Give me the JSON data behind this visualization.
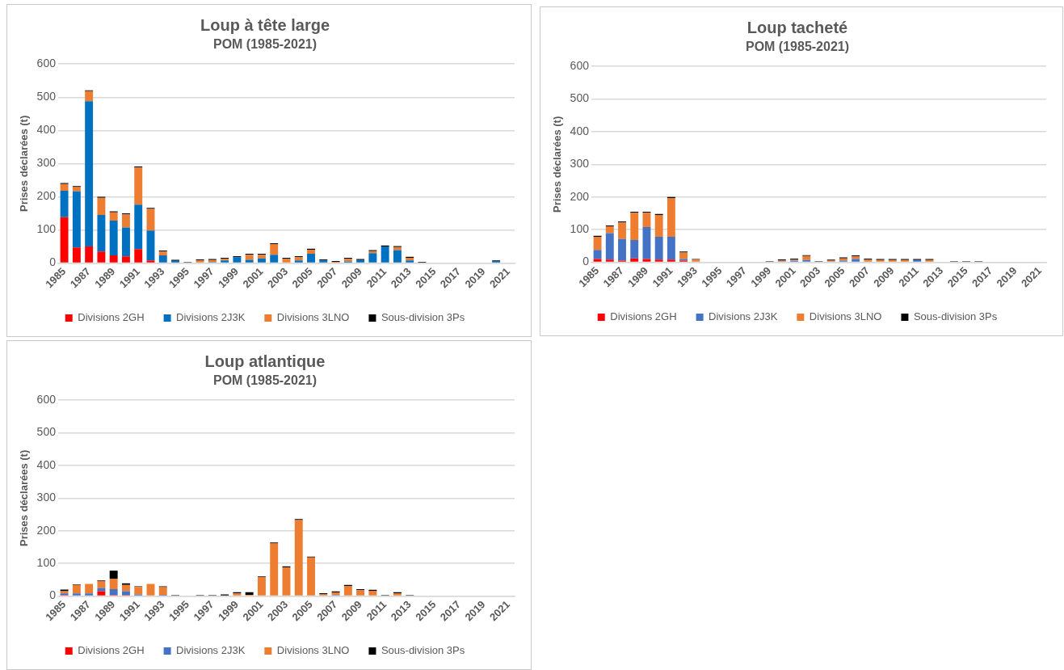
{
  "chart_data": [
    {
      "type": "bar",
      "title": "Loup à tête large",
      "subtitle": "POM (1985-2021)",
      "ylabel": "Prises déclarées (t)",
      "categories": [
        "1985",
        null,
        "1987",
        null,
        "1989",
        null,
        "1991",
        null,
        "1993",
        null,
        "1995",
        null,
        "1997",
        null,
        "1999",
        null,
        "2001",
        null,
        "2003",
        null,
        "2005",
        null,
        "2007",
        null,
        "2009",
        null,
        "2011",
        null,
        "2013",
        null,
        "2015",
        null,
        "2017",
        null,
        "2019",
        null,
        "2021"
      ],
      "stacked": true,
      "ylim": [
        0,
        600
      ],
      "yticks": [
        0,
        100,
        200,
        300,
        400,
        500,
        600
      ],
      "grid": "y",
      "legend": "bottom",
      "series": [
        {
          "name": "Divisions 2GH",
          "color": "#ff0000",
          "values": [
            138,
            47,
            50,
            35,
            23,
            20,
            42,
            8,
            0,
            0,
            0,
            0,
            0,
            0,
            0,
            0,
            0,
            0,
            0,
            0,
            0,
            0,
            0,
            0,
            0,
            0,
            0,
            0,
            0,
            0,
            0,
            0,
            0,
            0,
            0,
            0,
            0
          ]
        },
        {
          "name": "Divisions 2J3K",
          "color": "#0070c0",
          "values": [
            80,
            169,
            438,
            110,
            105,
            87,
            134,
            90,
            23,
            7,
            0,
            0,
            3,
            8,
            18,
            10,
            14,
            25,
            0,
            8,
            28,
            8,
            null,
            5,
            9,
            30,
            50,
            39,
            8,
            0,
            0,
            0,
            0,
            0,
            0,
            6,
            0
          ]
        },
        {
          "name": "Divisions 3LNO",
          "color": "#ed7d31",
          "values": [
            20,
            13,
            30,
            52,
            25,
            40,
            112,
            65,
            12,
            0,
            0,
            8,
            6,
            5,
            0,
            15,
            11,
            32,
            13,
            10,
            12,
            0,
            3,
            8,
            0,
            6,
            0,
            9,
            8,
            0,
            0,
            0,
            0,
            0,
            0,
            0,
            0
          ]
        },
        {
          "name": "Sous-division 3Ps",
          "color": "#000000",
          "values": [
            3,
            3,
            3,
            3,
            3,
            3,
            3,
            3,
            3,
            3,
            3,
            3,
            3,
            3,
            3,
            3,
            3,
            3,
            3,
            3,
            3,
            3,
            3,
            3,
            3,
            3,
            3,
            3,
            3,
            4,
            0,
            0,
            0,
            0,
            0,
            2,
            0
          ]
        }
      ]
    },
    {
      "type": "bar",
      "title": "Loup tacheté",
      "subtitle": "POM (1985-2021)",
      "ylabel": "Prises déclarées (t)",
      "categories": [
        "1985",
        null,
        "1987",
        null,
        "1989",
        null,
        "1991",
        null,
        "1993",
        null,
        "1995",
        null,
        "1997",
        null,
        "1999",
        null,
        "2001",
        null,
        "2003",
        null,
        "2005",
        null,
        "2007",
        null,
        "2009",
        null,
        "2011",
        null,
        "2013",
        null,
        "2015",
        null,
        "2017",
        null,
        "2019",
        null,
        "2021"
      ],
      "stacked": true,
      "ylim": [
        0,
        600
      ],
      "yticks": [
        0,
        100,
        200,
        300,
        400,
        500,
        600
      ],
      "grid": "y",
      "legend": "bottom",
      "series": [
        {
          "name": "Divisions 2GH",
          "color": "#ff0000",
          "values": [
            10,
            8,
            5,
            12,
            10,
            8,
            8,
            5,
            0,
            0,
            0,
            0,
            0,
            0,
            0,
            0,
            0,
            0,
            0,
            0,
            0,
            0,
            0,
            0,
            0,
            0,
            0,
            0,
            0,
            0,
            0,
            0,
            0,
            0,
            0,
            0,
            0
          ]
        },
        {
          "name": "Divisions 2J3K",
          "color": "#4472c4",
          "values": [
            28,
            81,
            66,
            56,
            98,
            70,
            70,
            5,
            0,
            0,
            0,
            0,
            0,
            0,
            0,
            3,
            5,
            7,
            0,
            0,
            5,
            10,
            0,
            0,
            0,
            0,
            7,
            0,
            0,
            0,
            0,
            0,
            0,
            0,
            0,
            0,
            0
          ]
        },
        {
          "name": "Divisions 3LNO",
          "color": "#ed7d31",
          "values": [
            40,
            21,
            51,
            84,
            44,
            67,
            119,
            20,
            8,
            0,
            0,
            0,
            0,
            0,
            0,
            3,
            3,
            12,
            0,
            5,
            7,
            8,
            8,
            7,
            7,
            7,
            0,
            7,
            0,
            0,
            0,
            0,
            0,
            0,
            0,
            0,
            0
          ]
        },
        {
          "name": "Sous-division 3Ps",
          "color": "#000000",
          "values": [
            3,
            3,
            3,
            3,
            3,
            3,
            3,
            3,
            2,
            0,
            0,
            0,
            0,
            0,
            3,
            3,
            3,
            3,
            3,
            3,
            3,
            3,
            3,
            3,
            3,
            3,
            3,
            3,
            0,
            3,
            3,
            3,
            0,
            0,
            0,
            0,
            0
          ]
        }
      ]
    },
    {
      "type": "bar",
      "title": "Loup atlantique",
      "subtitle": "POM (1985-2021)",
      "ylabel": "Prises déclarées (t)",
      "categories": [
        "1985",
        null,
        "1987",
        null,
        "1989",
        null,
        "1991",
        null,
        "1993",
        null,
        "1995",
        null,
        "1997",
        null,
        "1999",
        null,
        "2001",
        null,
        "2003",
        null,
        "2005",
        null,
        "2007",
        null,
        "2009",
        null,
        "2011",
        null,
        "2013",
        null,
        "2015",
        null,
        "2017",
        null,
        "2019",
        null,
        "2021"
      ],
      "stacked": true,
      "ylim": [
        0,
        600
      ],
      "yticks": [
        0,
        100,
        200,
        300,
        400,
        500,
        600
      ],
      "grid": "y",
      "legend": "bottom",
      "series": [
        {
          "name": "Divisions 2GH",
          "color": "#ff0000",
          "values": [
            3,
            0,
            0,
            15,
            3,
            3,
            0,
            2,
            0,
            0,
            0,
            0,
            0,
            0,
            0,
            0,
            0,
            0,
            0,
            0,
            0,
            0,
            0,
            0,
            0,
            0,
            0,
            0,
            0,
            0,
            0,
            0,
            0,
            0,
            0,
            0,
            0
          ]
        },
        {
          "name": "Divisions 2J3K",
          "color": "#4472c4",
          "values": [
            5,
            8,
            8,
            10,
            18,
            12,
            5,
            0,
            4,
            0,
            0,
            0,
            0,
            0,
            0,
            0,
            0,
            0,
            0,
            0,
            0,
            0,
            3,
            0,
            0,
            0,
            0,
            0,
            0,
            0,
            0,
            0,
            0,
            0,
            0,
            0,
            0
          ]
        },
        {
          "name": "Divisions 3LNO",
          "color": "#ed7d31",
          "values": [
            7,
            26,
            29,
            21,
            32,
            19,
            23,
            35,
            23,
            0,
            0,
            0,
            0,
            0,
            8,
            4,
            58,
            161,
            88,
            233,
            118,
            6,
            8,
            31,
            18,
            16,
            0,
            9,
            0,
            0,
            0,
            0,
            0,
            0,
            0,
            0,
            0
          ]
        },
        {
          "name": "Sous-division 3Ps",
          "color": "#000000",
          "values": [
            5,
            2,
            null,
            2,
            25,
            5,
            2,
            null,
            3,
            3,
            0,
            3,
            3,
            5,
            4,
            8,
            2,
            3,
            3,
            3,
            3,
            3,
            3,
            3,
            3,
            3,
            3,
            3,
            3,
            0,
            0,
            0,
            0,
            0,
            0,
            0,
            0
          ]
        }
      ]
    }
  ]
}
